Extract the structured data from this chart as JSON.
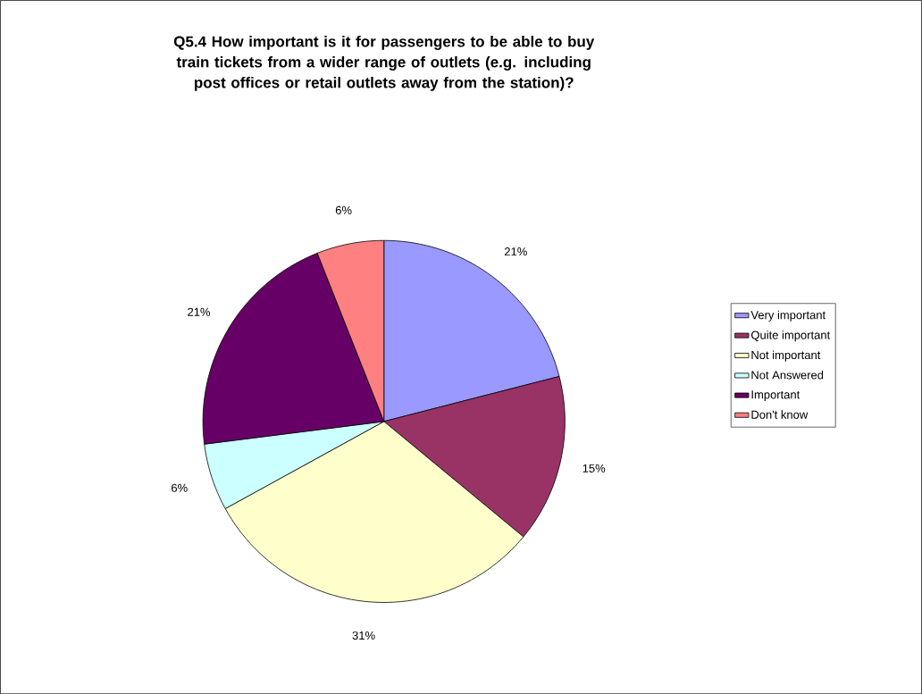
{
  "chart_data": {
    "type": "pie",
    "title": "Q5.4 How important is it for passengers to be able to buy train tickets from a wider range of outlets (e.g. including post offices or retail outlets away from the station)?",
    "categories": [
      "Very important",
      "Quite important",
      "Not important",
      "Not Answered",
      "Important",
      "Don't know"
    ],
    "values": [
      21,
      15,
      31,
      6,
      21,
      6
    ],
    "value_labels": [
      "21%",
      "15%",
      "31%",
      "6%",
      "21%",
      "6%"
    ],
    "colors": [
      "#9999ff",
      "#993366",
      "#ffffcc",
      "#ccffff",
      "#660066",
      "#ff8080"
    ],
    "legend": "right"
  }
}
